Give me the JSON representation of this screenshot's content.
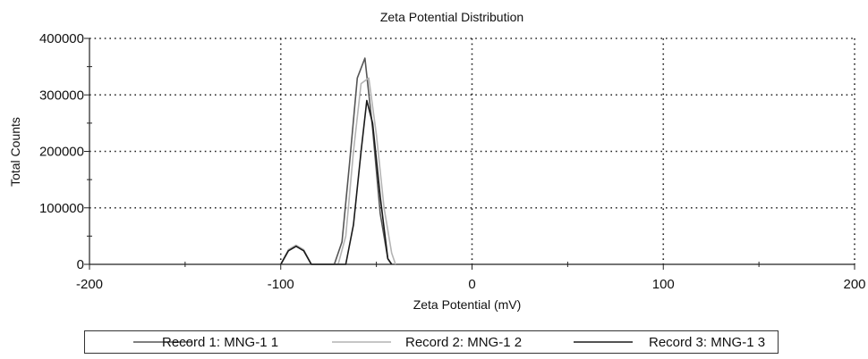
{
  "chart_data": {
    "type": "line",
    "title": "Zeta Potential Distribution",
    "xlabel": "Zeta Potential (mV)",
    "ylabel": "Total Counts",
    "xlim": [
      -200,
      200
    ],
    "ylim": [
      0,
      400000
    ],
    "x_ticks": [
      -200,
      -100,
      0,
      100,
      200
    ],
    "y_ticks": [
      0,
      100000,
      200000,
      300000,
      400000
    ],
    "grid": true,
    "legend_position": "bottom",
    "series": [
      {
        "name": "Record 1: MNG-1 1",
        "color": "#555555",
        "points": [
          [
            -100,
            0
          ],
          [
            -96,
            25000
          ],
          [
            -92,
            33000
          ],
          [
            -88,
            25000
          ],
          [
            -84,
            0
          ],
          [
            -72,
            0
          ],
          [
            -68,
            40000
          ],
          [
            -64,
            180000
          ],
          [
            -60,
            330000
          ],
          [
            -56,
            365000
          ],
          [
            -52,
            240000
          ],
          [
            -48,
            90000
          ],
          [
            -44,
            10000
          ],
          [
            -42,
            0
          ]
        ]
      },
      {
        "name": "Record 2: MNG-1 2",
        "color": "#b4b4b4",
        "points": [
          [
            -100,
            0
          ],
          [
            -96,
            26000
          ],
          [
            -92,
            34000
          ],
          [
            -88,
            26000
          ],
          [
            -84,
            0
          ],
          [
            -70,
            0
          ],
          [
            -66,
            50000
          ],
          [
            -62,
            200000
          ],
          [
            -58,
            320000
          ],
          [
            -54,
            330000
          ],
          [
            -50,
            230000
          ],
          [
            -46,
            100000
          ],
          [
            -42,
            20000
          ],
          [
            -40,
            0
          ]
        ]
      },
      {
        "name": "Record 3: MNG-1 3",
        "color": "#1a1a1a",
        "points": [
          [
            -100,
            0
          ],
          [
            -96,
            24000
          ],
          [
            -92,
            32000
          ],
          [
            -88,
            24000
          ],
          [
            -84,
            0
          ],
          [
            -66,
            0
          ],
          [
            -62,
            70000
          ],
          [
            -58,
            200000
          ],
          [
            -55,
            290000
          ],
          [
            -52,
            250000
          ],
          [
            -48,
            120000
          ],
          [
            -44,
            10000
          ],
          [
            -42,
            0
          ]
        ]
      }
    ]
  }
}
